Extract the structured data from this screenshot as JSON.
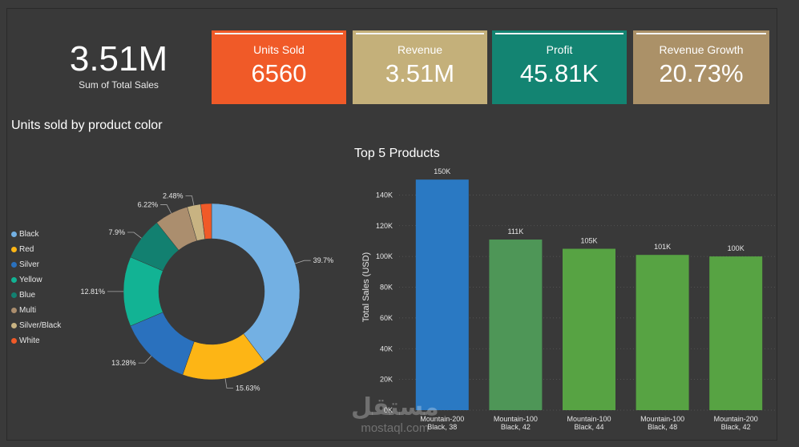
{
  "big_kpi": {
    "value": "3.51M",
    "label": "Sum of Total Sales"
  },
  "cards": [
    {
      "label": "Units Sold",
      "value": "6560",
      "color": "#f05a28"
    },
    {
      "label": "Revenue",
      "value": "3.51M",
      "color": "#c4b07a"
    },
    {
      "label": "Profit",
      "value": "45.81K",
      "color": "#138472"
    },
    {
      "label": "Revenue Growth",
      "value": "20.73%",
      "color": "#ab9168"
    }
  ],
  "watermark": {
    "arabic": "مستقل",
    "latin": "mostaql.com"
  },
  "chart_data": [
    {
      "type": "pie",
      "title": "Units sold by product color",
      "donut": true,
      "legend_position": "left",
      "slices": [
        {
          "label": "Black",
          "value": 39.7,
          "display": "39.7%",
          "color": "#73b0e3"
        },
        {
          "label": "Red",
          "value": 15.63,
          "display": "15.63%",
          "color": "#fdb515"
        },
        {
          "label": "Silver",
          "value": 13.28,
          "display": "13.28%",
          "color": "#2a71be"
        },
        {
          "label": "Yellow",
          "value": 12.81,
          "display": "12.81%",
          "color": "#12b394"
        },
        {
          "label": "Blue",
          "value": 7.9,
          "display": "7.9%",
          "color": "#128070"
        },
        {
          "label": "Multi",
          "value": 6.22,
          "display": "6.22%",
          "color": "#ab8e6e"
        },
        {
          "label": "Silver/Black",
          "value": 2.48,
          "display": "2.48%",
          "color": "#c8b382"
        },
        {
          "label": "White",
          "value": 1.98,
          "display": "",
          "color": "#f05a28"
        }
      ]
    },
    {
      "type": "bar",
      "title": "Top 5 Products",
      "ylabel": "Total Sales (USD)",
      "ylim": [
        0,
        160000
      ],
      "yticks": [
        0,
        20000,
        40000,
        60000,
        80000,
        100000,
        120000,
        140000
      ],
      "ytick_labels": [
        "0K",
        "20K",
        "40K",
        "60K",
        "80K",
        "100K",
        "120K",
        "140K"
      ],
      "grid": true,
      "categories": [
        [
          "Mountain-200",
          "Black, 38"
        ],
        [
          "Mountain-100",
          "Black, 42"
        ],
        [
          "Mountain-100",
          "Black, 44"
        ],
        [
          "Mountain-100",
          "Black, 48"
        ],
        [
          "Mountain-200",
          "Black, 42"
        ]
      ],
      "values": [
        150000,
        111000,
        105000,
        101000,
        100000
      ],
      "labels": [
        "150K",
        "111K",
        "105K",
        "101K",
        "100K"
      ],
      "colors": [
        "#2a79c3",
        "#4e9657",
        "#57a343",
        "#57a343",
        "#57a343"
      ]
    }
  ]
}
